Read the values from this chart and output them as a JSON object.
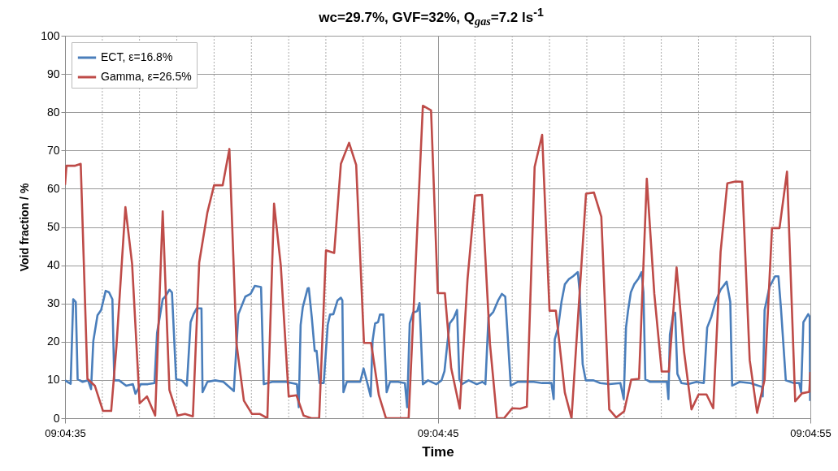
{
  "chart_data": {
    "type": "line",
    "title": "wc=29.7%, GVF=32%, Q$_{gas}$=7.2 ls$^{-1}$",
    "xlabel": "Time",
    "ylabel": "Void fraction / %",
    "xlim": [
      9.076389,
      9.081944
    ],
    "xticks": [
      {
        "value": 9.076389,
        "label": "09:04:35"
      },
      {
        "value": 9.076667,
        "label": null
      },
      {
        "value": 9.076944,
        "label": null
      },
      {
        "value": 9.077222,
        "label": null
      },
      {
        "value": 9.0775,
        "label": null
      },
      {
        "value": 9.077778,
        "label": null
      },
      {
        "value": 9.078056,
        "label": null
      },
      {
        "value": 9.078333,
        "label": null
      },
      {
        "value": 9.078611,
        "label": null
      },
      {
        "value": 9.078889,
        "label": null
      },
      {
        "value": 9.079167,
        "label": "09:04:45"
      },
      {
        "value": 9.079444,
        "label": null
      },
      {
        "value": 9.079722,
        "label": null
      },
      {
        "value": 9.08,
        "label": null
      },
      {
        "value": 9.080278,
        "label": null
      },
      {
        "value": 9.080556,
        "label": null
      },
      {
        "value": 9.080833,
        "label": null
      },
      {
        "value": 9.081111,
        "label": null
      },
      {
        "value": 9.081389,
        "label": null
      },
      {
        "value": 9.081667,
        "label": null
      },
      {
        "value": 9.081944,
        "label": "09:04:55"
      }
    ],
    "ylim": [
      0,
      100
    ],
    "yticks": [
      0,
      10,
      20,
      30,
      40,
      50,
      60,
      70,
      80,
      90,
      100
    ],
    "grid": true,
    "legend": "top left",
    "series": [
      {
        "name": "ECT, ε=16.8%",
        "color": "#4a7ebb",
        "x": [
          9.076389,
          9.076431,
          9.07645,
          9.076469,
          9.076483,
          9.07652,
          9.076561,
          9.076583,
          9.0766,
          9.076631,
          9.076658,
          9.076692,
          9.076717,
          9.076742,
          9.076756,
          9.076792,
          9.076845,
          9.076895,
          9.076914,
          9.076953,
          9.077006,
          9.077056,
          9.077075,
          9.077117,
          9.077136,
          9.077167,
          9.077186,
          9.077217,
          9.077258,
          9.077297,
          9.077325,
          9.077347,
          9.07737,
          9.077406,
          9.077414,
          9.07745,
          9.077508,
          9.07757,
          9.077647,
          9.077681,
          9.077733,
          9.077772,
          9.077803,
          9.07785,
          9.07787,
          9.077933,
          9.078036,
          9.078117,
          9.078131,
          9.078145,
          9.078161,
          9.078197,
          9.078206,
          9.078228,
          9.07825,
          9.078264,
          9.078286,
          9.078317,
          9.078347,
          9.078364,
          9.078389,
          9.07842,
          9.078445,
          9.078456,
          9.078464,
          9.078489,
          9.07855,
          9.078589,
          9.078614,
          9.078642,
          9.078667,
          9.078681,
          9.0787,
          9.078722,
          9.078736,
          9.078761,
          9.078786,
          9.078811,
          9.078872,
          9.078922,
          9.078939,
          9.078958,
          9.078983,
          9.079014,
          9.079031,
          9.079056,
          9.079095,
          9.079156,
          9.079195,
          9.079217,
          9.079236,
          9.079256,
          9.079286,
          9.079311,
          9.079328,
          9.079347,
          9.079397,
          9.079458,
          9.0795,
          9.079522,
          9.079545,
          9.079581,
          9.079617,
          9.079645,
          9.07967,
          9.079711,
          9.079761,
          9.079822,
          9.079883,
          9.079945,
          9.080014,
          9.080031,
          9.080039,
          9.080064,
          9.080089,
          9.080114,
          9.080145,
          9.080175,
          9.080211,
          9.080225,
          9.080247,
          9.08027,
          9.080328,
          9.080378,
          9.080447,
          9.080528,
          9.080553,
          9.08057,
          9.080586,
          9.080606,
          9.080631,
          9.080661,
          9.080686,
          9.0807,
          9.080714,
          9.08075,
          9.080811,
          9.080875,
          9.080886,
          9.080897,
          9.080922,
          9.080936,
          9.080953,
          9.080983,
          9.081033,
          9.081095,
          9.08115,
          9.081175,
          9.081206,
          9.081236,
          9.081275,
          9.08132,
          9.081347,
          9.081361,
          9.081417,
          9.081497,
          9.081583,
          9.081589,
          9.081603,
          9.081639,
          9.081681,
          9.081706,
          9.081725,
          9.081761,
          9.081822,
          9.081861,
          9.081875,
          9.081892,
          9.081928,
          9.081939,
          9.081942
        ],
        "values": [
          9.9,
          9.0,
          31.1,
          30.4,
          10.2,
          9.5,
          9.9,
          7.6,
          20.2,
          26.9,
          28.3,
          33.3,
          32.9,
          31.1,
          9.9,
          9.9,
          8.5,
          8.9,
          6.4,
          8.9,
          8.9,
          9.2,
          22.3,
          31.1,
          31.8,
          33.6,
          32.9,
          10.2,
          9.9,
          8.5,
          25.1,
          27.2,
          28.7,
          28.7,
          6.8,
          9.5,
          9.9,
          9.5,
          7.1,
          27.2,
          31.8,
          32.5,
          34.6,
          34.3,
          8.9,
          9.5,
          9.5,
          8.9,
          2.9,
          24.4,
          29.0,
          33.9,
          34.0,
          26.4,
          17.6,
          17.6,
          9.2,
          9.2,
          24.4,
          27.1,
          27.2,
          30.8,
          31.5,
          30.8,
          6.8,
          9.5,
          9.5,
          9.5,
          13.0,
          9.2,
          5.7,
          20.2,
          24.8,
          25.1,
          27.1,
          27.1,
          6.8,
          9.5,
          9.5,
          9.2,
          2.9,
          24.8,
          27.6,
          28.0,
          30.1,
          8.9,
          9.9,
          8.9,
          9.9,
          12.3,
          18.7,
          24.8,
          26.2,
          28.3,
          10.2,
          8.9,
          9.9,
          8.9,
          9.5,
          8.9,
          26.4,
          27.8,
          30.8,
          32.5,
          31.8,
          8.5,
          9.5,
          9.5,
          9.5,
          9.2,
          9.2,
          5.0,
          20.6,
          23.7,
          30.4,
          35.0,
          36.4,
          37.1,
          38.2,
          32.9,
          14.1,
          9.9,
          9.9,
          9.2,
          8.9,
          9.2,
          5.0,
          23.7,
          28.3,
          32.9,
          35.0,
          36.4,
          38.2,
          32.9,
          10.2,
          9.5,
          9.5,
          9.5,
          5.0,
          21.9,
          27.2,
          27.6,
          11.6,
          9.2,
          8.9,
          9.5,
          9.2,
          23.7,
          26.5,
          30.4,
          33.6,
          35.7,
          30.4,
          8.5,
          9.5,
          9.2,
          8.2,
          5.7,
          28.3,
          34.3,
          37.1,
          37.1,
          28.7,
          9.9,
          9.2,
          9.2,
          6.8,
          25.1,
          27.2,
          26.5,
          4.5
        ]
      },
      {
        "name": "Gamma, ε=26.5%",
        "color": "#be4b48",
        "x": [
          9.076389,
          9.0764,
          9.076461,
          9.076506,
          9.076556,
          9.076611,
          9.076672,
          9.076733,
          9.076772,
          9.076839,
          9.076889,
          9.076945,
          9.077,
          9.077061,
          9.077117,
          9.077167,
          9.077228,
          9.077283,
          9.077342,
          9.077389,
          9.07745,
          9.0775,
          9.077564,
          9.077614,
          9.077667,
          9.077722,
          9.077783,
          9.077842,
          9.077897,
          9.077947,
          9.077997,
          9.078056,
          9.078114,
          9.078167,
          9.078225,
          9.078283,
          9.078334,
          9.078395,
          9.078445,
          9.078506,
          9.078559,
          9.078617,
          9.07867,
          9.078728,
          9.078781,
          9.07895,
          9.079056,
          9.079117,
          9.079167,
          9.07922,
          9.079267,
          9.079331,
          9.079389,
          9.079445,
          9.079497,
          9.079556,
          9.079608,
          9.079661,
          9.079722,
          9.079781,
          9.079831,
          9.079889,
          9.079945,
          9.08,
          9.080047,
          9.080114,
          9.080164,
          9.080272,
          9.080331,
          9.080386,
          9.080445,
          9.080497,
          9.080556,
          9.080609,
          9.080667,
          9.080725,
          9.080781,
          9.080836,
          9.080889,
          9.080947,
          9.081003,
          9.081058,
          9.081111,
          9.08117,
          9.08122,
          9.081275,
          9.081325,
          9.081386,
          9.081436,
          9.081492,
          9.081547,
          9.081603,
          9.081658,
          9.081714,
          9.08177,
          9.081831,
          9.081881,
          9.081936,
          9.081944
        ],
        "values": [
          61,
          66.0,
          66,
          66.5,
          10.3,
          8.5,
          1.9,
          1.9,
          18.7,
          55.2,
          40.3,
          3.9,
          5.7,
          0.7,
          54.1,
          7.4,
          0.7,
          1.1,
          0.5,
          40.7,
          53.8,
          60.9,
          60.9,
          70.4,
          19.5,
          4.6,
          1.1,
          1.1,
          0,
          56.1,
          40,
          5.7,
          6.0,
          0.7,
          0,
          0,
          43.9,
          43.2,
          66.5,
          72.0,
          66.2,
          19.7,
          19.7,
          6.0,
          0,
          0,
          81.7,
          80.5,
          32.7,
          32.7,
          13.1,
          2.5,
          36.4,
          58.2,
          58.4,
          19.5,
          0,
          0,
          2.6,
          2.5,
          3.0,
          65.7,
          74.1,
          28.1,
          28.1,
          6.7,
          0,
          58.7,
          59.0,
          52.7,
          2.3,
          0.2,
          1.8,
          10.1,
          10.3,
          62.6,
          32.5,
          12.2,
          12.2,
          39.4,
          17.3,
          2.3,
          6.2,
          6.2,
          2.6,
          43.5,
          61.4,
          61.9,
          61.8,
          15.2,
          1.4,
          10.1,
          49.7,
          49.7,
          64.5,
          4.4,
          6.5,
          6.9,
          12.1
        ]
      }
    ]
  }
}
